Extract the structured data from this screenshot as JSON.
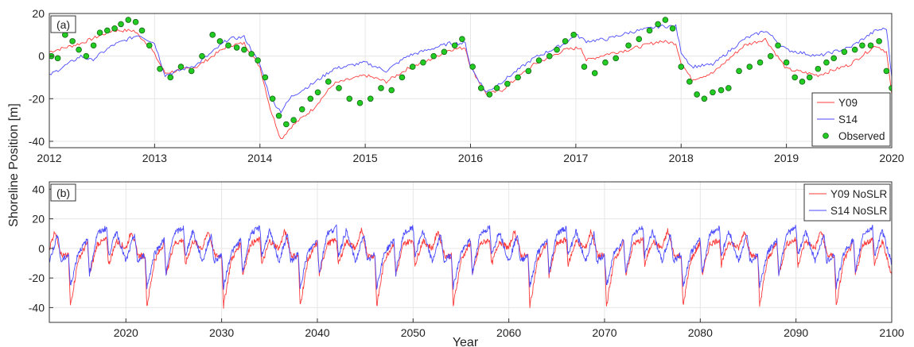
{
  "figure": {
    "ylabel": "Shoreline Position [m]",
    "xlabel": "Year"
  },
  "chart_data": [
    {
      "id": "a",
      "panel_label": "(a)",
      "type": "line",
      "xlim": [
        2012,
        2020
      ],
      "ylim": [
        -43,
        20
      ],
      "xticks": [
        2012,
        2013,
        2014,
        2015,
        2016,
        2017,
        2018,
        2019,
        2020
      ],
      "yticks": [
        -40,
        -20,
        0,
        20
      ],
      "grid": true,
      "legend_position": "bottom-right",
      "colors": {
        "Y09": "#ff3b3b",
        "S14": "#4a4aff",
        "Observed": "#22cc22"
      },
      "series": [
        {
          "name": "Y09",
          "kind": "line",
          "x": [
            2012.0,
            2012.3,
            2012.6,
            2012.8,
            2012.95,
            2013.1,
            2013.4,
            2013.7,
            2013.85,
            2014.0,
            2014.1,
            2014.2,
            2014.3,
            2014.5,
            2014.7,
            2015.0,
            2015.2,
            2015.4,
            2015.6,
            2015.8,
            2015.95,
            2016.0,
            2016.15,
            2016.3,
            2016.6,
            2016.9,
            2017.05,
            2017.1,
            2017.3,
            2017.5,
            2017.8,
            2017.95,
            2018.0,
            2018.1,
            2018.3,
            2018.6,
            2018.8,
            2019.0,
            2019.3,
            2019.6,
            2019.85,
            2019.95,
            2020.0
          ],
          "y": [
            2,
            6,
            12,
            12,
            5,
            -8,
            -5,
            5,
            6,
            -5,
            -25,
            -39,
            -33,
            -25,
            -13,
            -9,
            -12,
            -6,
            -2,
            3,
            4,
            -5,
            -18,
            -16,
            -4,
            3,
            4,
            -2,
            1,
            3,
            7,
            6,
            -3,
            -11,
            -8,
            5,
            8,
            -6,
            -9,
            -4,
            5,
            2,
            -18
          ]
        },
        {
          "name": "S14",
          "kind": "line",
          "x": [
            2012.0,
            2012.3,
            2012.4,
            2012.6,
            2012.85,
            2013.0,
            2013.1,
            2013.4,
            2013.7,
            2013.85,
            2014.0,
            2014.1,
            2014.2,
            2014.3,
            2014.5,
            2014.7,
            2015.0,
            2015.2,
            2015.4,
            2015.6,
            2015.8,
            2015.95,
            2016.0,
            2016.15,
            2016.3,
            2016.6,
            2016.9,
            2017.0,
            2017.1,
            2017.3,
            2017.5,
            2017.8,
            2017.95,
            2018.0,
            2018.1,
            2018.3,
            2018.6,
            2018.8,
            2019.0,
            2019.3,
            2019.6,
            2019.85,
            2019.95,
            2020.0
          ],
          "y": [
            -9,
            0,
            -2,
            5,
            10,
            6,
            -9,
            -4,
            8,
            9,
            -4,
            -20,
            -26,
            -19,
            -13,
            -6,
            -3,
            -7,
            0,
            3,
            6,
            6,
            -5,
            -17,
            -12,
            -1,
            6,
            10,
            7,
            8,
            11,
            14,
            14,
            2,
            -5,
            -4,
            8,
            12,
            3,
            0,
            4,
            12,
            13,
            -10
          ]
        },
        {
          "name": "Observed",
          "kind": "scatter",
          "x": [
            2012.02,
            2012.08,
            2012.15,
            2012.22,
            2012.28,
            2012.35,
            2012.42,
            2012.48,
            2012.55,
            2012.62,
            2012.68,
            2012.75,
            2012.82,
            2012.88,
            2012.95,
            2013.05,
            2013.15,
            2013.25,
            2013.35,
            2013.45,
            2013.55,
            2013.62,
            2013.7,
            2013.78,
            2013.85,
            2013.92,
            2013.98,
            2014.05,
            2014.12,
            2014.18,
            2014.25,
            2014.32,
            2014.4,
            2014.48,
            2014.55,
            2014.65,
            2014.75,
            2014.85,
            2014.95,
            2015.05,
            2015.15,
            2015.25,
            2015.35,
            2015.45,
            2015.55,
            2015.65,
            2015.75,
            2015.85,
            2015.92,
            2016.02,
            2016.1,
            2016.18,
            2016.25,
            2016.35,
            2016.45,
            2016.55,
            2016.65,
            2016.75,
            2016.82,
            2016.9,
            2016.98,
            2017.08,
            2017.18,
            2017.28,
            2017.38,
            2017.5,
            2017.6,
            2017.7,
            2017.78,
            2017.85,
            2017.92,
            2018.0,
            2018.08,
            2018.15,
            2018.22,
            2018.3,
            2018.38,
            2018.45,
            2018.55,
            2018.65,
            2018.75,
            2018.85,
            2018.92,
            2019.0,
            2019.08,
            2019.15,
            2019.22,
            2019.3,
            2019.38,
            2019.45,
            2019.55,
            2019.65,
            2019.72,
            2019.8,
            2019.88,
            2019.95,
            2020.0
          ],
          "y": [
            0,
            -1,
            10,
            7,
            3,
            0,
            5,
            11,
            12,
            13,
            15,
            17,
            16,
            12,
            5,
            -6,
            -10,
            -5,
            -7,
            0,
            10,
            7,
            5,
            4,
            3,
            1,
            -2,
            -10,
            -20,
            -28,
            -32,
            -30,
            -25,
            -20,
            -17,
            -12,
            -15,
            -20,
            -22,
            -20,
            -15,
            -16,
            -10,
            -5,
            -3,
            0,
            2,
            5,
            8,
            -5,
            -15,
            -18,
            -15,
            -13,
            -10,
            -7,
            -2,
            0,
            3,
            7,
            10,
            -5,
            -8,
            -3,
            -1,
            5,
            8,
            12,
            15,
            17,
            13,
            -5,
            -12,
            -18,
            -20,
            -17,
            -16,
            -15,
            -7,
            -5,
            -3,
            0,
            5,
            -3,
            -10,
            -12,
            -10,
            -6,
            -3,
            -1,
            2,
            3,
            5,
            5,
            7,
            -7,
            -15
          ]
        }
      ]
    },
    {
      "id": "b",
      "panel_label": "(b)",
      "type": "line",
      "xlim": [
        2012,
        2100
      ],
      "ylim": [
        -50,
        45
      ],
      "xticks": [
        2020,
        2030,
        2040,
        2050,
        2060,
        2070,
        2080,
        2090,
        2100
      ],
      "yticks": [
        -40,
        -20,
        0,
        20,
        40
      ],
      "grid": true,
      "legend_position": "top-right",
      "colors": {
        "Y09 NoSLR": "#ff3b3b",
        "S14 NoSLR": "#4a4aff"
      },
      "series": [
        {
          "name": "Y09 NoSLR",
          "kind": "line",
          "x": [
            2012,
            2012.6,
            2013.3,
            2014,
            2014.2,
            2015,
            2016,
            2016.2,
            2017,
            2018,
            2018.2,
            2019,
            2020
          ],
          "y": [
            0,
            12,
            -5,
            -5,
            -39,
            -8,
            4,
            -18,
            3,
            6,
            -11,
            5,
            -18
          ]
        },
        {
          "name": "S14 NoSLR",
          "kind": "line",
          "x": [
            2012,
            2012.9,
            2013.2,
            2014,
            2014.2,
            2015,
            2016,
            2016.2,
            2017,
            2018,
            2018.2,
            2019,
            2020
          ],
          "y": [
            -9,
            10,
            -9,
            -4,
            -26,
            -3,
            6,
            -17,
            10,
            14,
            -5,
            12,
            -10
          ]
        }
      ]
    }
  ]
}
